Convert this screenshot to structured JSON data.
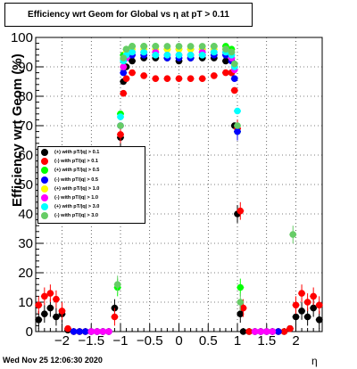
{
  "chart_data": {
    "type": "scatter",
    "title": "Efficiency wrt Geom for Global vs   η at pT > 0.11",
    "xlabel": "η",
    "ylabel": "Efficiency wrt Geom (%)",
    "xlim": [
      -2.45,
      2.45
    ],
    "ylim": [
      0,
      100
    ],
    "x_ticks": [
      -2,
      -1.5,
      -1,
      -0.5,
      0,
      0.5,
      1,
      1.5,
      2
    ],
    "y_ticks": [
      0,
      10,
      20,
      30,
      40,
      50,
      60,
      70,
      80,
      90,
      100
    ],
    "grid": true,
    "legend_position": "center-left",
    "series": [
      {
        "name": "(+) with pT/|q| > 0.1",
        "color": "#000000",
        "x": [
          -2.4,
          -2.3,
          -2.2,
          -2.1,
          -2.0,
          -1.9,
          -1.8,
          -1.7,
          -1.6,
          -1.5,
          -1.4,
          -1.3,
          -1.2,
          -1.1,
          -1.05,
          -1.0,
          -0.95,
          -0.9,
          -0.8,
          -0.6,
          -0.4,
          -0.2,
          0,
          0.2,
          0.4,
          0.6,
          0.8,
          0.9,
          0.95,
          1.0,
          1.05,
          1.1,
          1.2,
          1.3,
          1.4,
          1.5,
          1.6,
          1.7,
          1.8,
          1.9,
          2.0,
          2.1,
          2.2,
          2.3,
          2.4
        ],
        "y": [
          4,
          6,
          8,
          5,
          6,
          0.5,
          0,
          0,
          0,
          0,
          0,
          0,
          0,
          8,
          40,
          66,
          85,
          90,
          92,
          93,
          93,
          93,
          92,
          93,
          93,
          93,
          92,
          88,
          70,
          40,
          6,
          0,
          0,
          0,
          0,
          0,
          0,
          0,
          0,
          1,
          5,
          7,
          5,
          8,
          4
        ]
      },
      {
        "name": "(-) with pT/|q| > 0.1",
        "color": "#ff0000",
        "x": [
          -2.4,
          -2.3,
          -2.2,
          -2.1,
          -2.0,
          -1.9,
          -1.8,
          -1.7,
          -1.6,
          -1.5,
          -1.4,
          -1.3,
          -1.2,
          -1.1,
          -1.05,
          -1.0,
          -0.95,
          -0.9,
          -0.8,
          -0.6,
          -0.4,
          -0.2,
          0,
          0.2,
          0.4,
          0.6,
          0.8,
          0.9,
          0.95,
          1.0,
          1.05,
          1.1,
          1.2,
          1.3,
          1.4,
          1.5,
          1.6,
          1.7,
          1.8,
          1.9,
          2.0,
          2.1,
          2.2,
          2.3,
          2.4
        ],
        "y": [
          9,
          12,
          13,
          11,
          7,
          1,
          0,
          0,
          0,
          0,
          0,
          0,
          0,
          5,
          41,
          67,
          81,
          86,
          88,
          87,
          86,
          86,
          86,
          86,
          86,
          87,
          88,
          88,
          82,
          69,
          41,
          8,
          0,
          0,
          0,
          0,
          0,
          0,
          0,
          1,
          9,
          13,
          10,
          12,
          9
        ]
      },
      {
        "name": "(+) with pT/|q| > 0.5",
        "color": "#00ff00",
        "x": [
          -1.05,
          -1.0,
          -0.95,
          -0.9,
          -0.8,
          -0.6,
          -0.4,
          -0.2,
          0,
          0.2,
          0.4,
          0.6,
          0.8,
          0.9,
          0.95,
          1.0,
          1.05
        ],
        "y": [
          15,
          74,
          94,
          96,
          97,
          97,
          97,
          96,
          96,
          96,
          96,
          97,
          97,
          96,
          90,
          68,
          15
        ]
      },
      {
        "name": "(-) with pT/|q| > 0.5",
        "color": "#0000ff",
        "x": [
          -1.8,
          -1.7,
          -1.6,
          -1.5,
          -1.4,
          -1.3,
          -1.2,
          -1.0,
          -0.95,
          -0.9,
          -0.8,
          -0.6,
          -0.4,
          -0.2,
          0,
          0.2,
          0.4,
          0.6,
          0.8,
          0.9,
          0.95,
          1.0,
          1.3,
          1.4,
          1.5,
          1.6,
          1.7
        ],
        "y": [
          0,
          0,
          0,
          0,
          0,
          0,
          0,
          70,
          88,
          93,
          94,
          94,
          94,
          93,
          93,
          93,
          94,
          94,
          94,
          92,
          86,
          68,
          0,
          0,
          0,
          0,
          0
        ]
      },
      {
        "name": "(+) with pT/|q| > 1.0",
        "color": "#ffff00",
        "x": [
          -0.95,
          -0.9,
          -0.8,
          -0.6,
          -0.4,
          -0.2,
          0,
          0.2,
          0.4,
          0.6,
          0.8,
          0.9,
          0.95
        ],
        "y": [
          90,
          95,
          96,
          96,
          96,
          96,
          96,
          96,
          96,
          96,
          96,
          95,
          90
        ]
      },
      {
        "name": "(-) with pT/|q| > 1.0",
        "color": "#ff00ff",
        "x": [
          -1.5,
          -1.4,
          -1.3,
          -1.2,
          -0.95,
          -0.9,
          -0.8,
          -0.6,
          -0.4,
          -0.2,
          0,
          0.2,
          0.4,
          0.6,
          0.8,
          0.9,
          0.95,
          1.3,
          1.4,
          1.5,
          1.6
        ],
        "y": [
          0,
          0,
          0,
          0,
          90,
          93,
          95,
          95,
          95,
          94,
          94,
          94,
          95,
          95,
          95,
          93,
          89,
          0,
          0,
          0,
          0
        ]
      },
      {
        "name": "(+) with pT/|q| > 3.0",
        "color": "#00ffff",
        "x": [
          -1.0,
          -0.95,
          -0.9,
          -0.8,
          -0.6,
          -0.4,
          -0.2,
          0,
          0.2,
          0.4,
          0.6,
          0.8,
          0.9,
          0.95,
          1.0
        ],
        "y": [
          73,
          92,
          94,
          95,
          95,
          94,
          94,
          94,
          94,
          94,
          95,
          95,
          94,
          90,
          75
        ]
      },
      {
        "name": "(-) with pT/|q| > 3.0",
        "color": "#66cc66",
        "x": [
          -1.05,
          -1.0,
          -0.95,
          -0.9,
          -0.8,
          -0.6,
          -0.4,
          -0.2,
          0,
          0.2,
          0.4,
          0.6,
          0.8,
          0.9,
          0.95,
          1.0,
          1.05,
          1.95
        ],
        "y": [
          16,
          70,
          93,
          96,
          97,
          97,
          97,
          97,
          97,
          97,
          97,
          97,
          96,
          95,
          91,
          70,
          10,
          33
        ]
      }
    ]
  },
  "footer": {
    "timestamp": "Wed Nov 25 12:06:30 2020"
  }
}
